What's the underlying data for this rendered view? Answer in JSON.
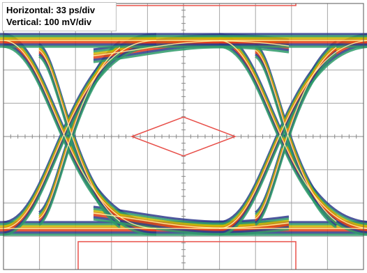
{
  "labels": {
    "horizontal": "Horizontal: 33 ps/div",
    "vertical": "Vertical: 100 mV/div"
  },
  "colors": {
    "grid": "#a6a6a6",
    "axis": "#8a8a8a",
    "mask": "#e8504a",
    "trace_bands": [
      "#2e3a8c",
      "#2e9a6a",
      "#c9b800",
      "#e86a10",
      "#e23a1a"
    ],
    "trace_core": "#fff4a0"
  },
  "chart_data": {
    "type": "eye_diagram",
    "horizontal_scale": "33 ps/div",
    "vertical_scale": "100 mV/div",
    "grid": true,
    "grid_divisions": {
      "x": 10,
      "y": 8
    },
    "mask": "diamond at the center of the eye, with limit bars at the top and bottom"
  }
}
